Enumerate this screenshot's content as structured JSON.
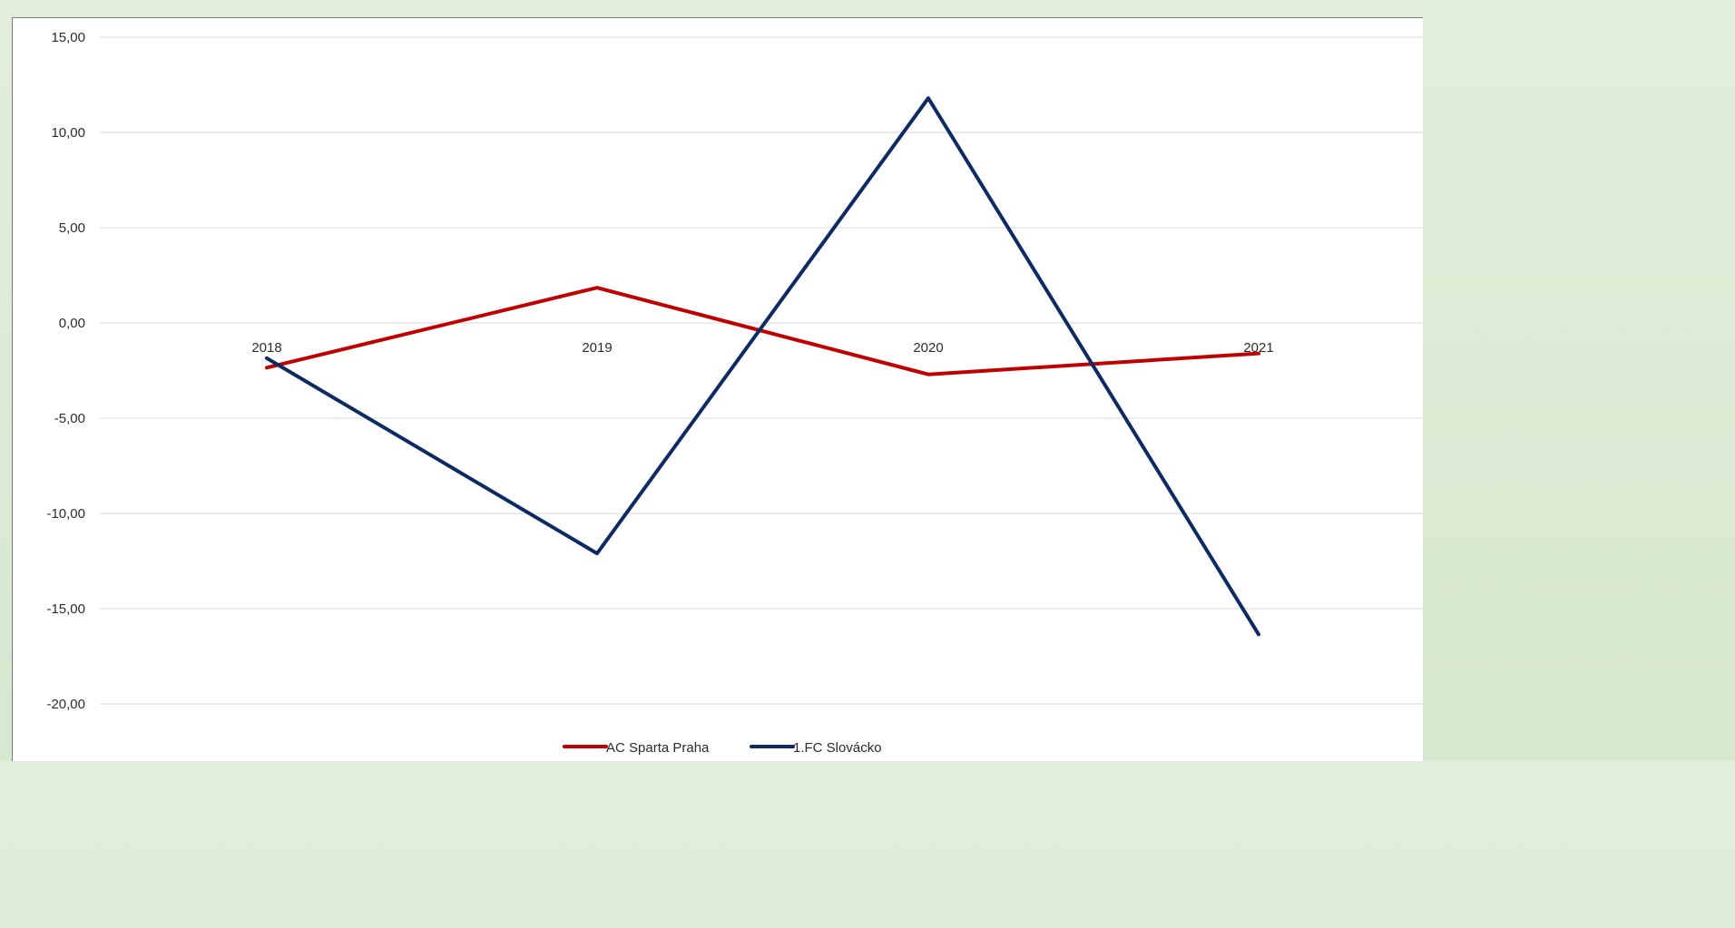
{
  "chart_data": {
    "type": "line",
    "categories": [
      "2018",
      "2019",
      "2020",
      "2021"
    ],
    "series": [
      {
        "name": "AC Sparta Praha",
        "values": [
          -2.35,
          1.85,
          -2.7,
          -1.6
        ],
        "color": "#c00000"
      },
      {
        "name": "1.FC Slovácko",
        "values": [
          -1.85,
          -12.1,
          11.8,
          -16.35
        ],
        "color": "#0d2a63"
      }
    ],
    "y_ticks": [
      "15,00",
      "10,00",
      "5,00",
      "0,00",
      "-5,00",
      "-10,00",
      "-15,00",
      "-20,00"
    ],
    "ylim": [
      -20,
      15
    ],
    "grid": true,
    "legend_position": "bottom"
  }
}
